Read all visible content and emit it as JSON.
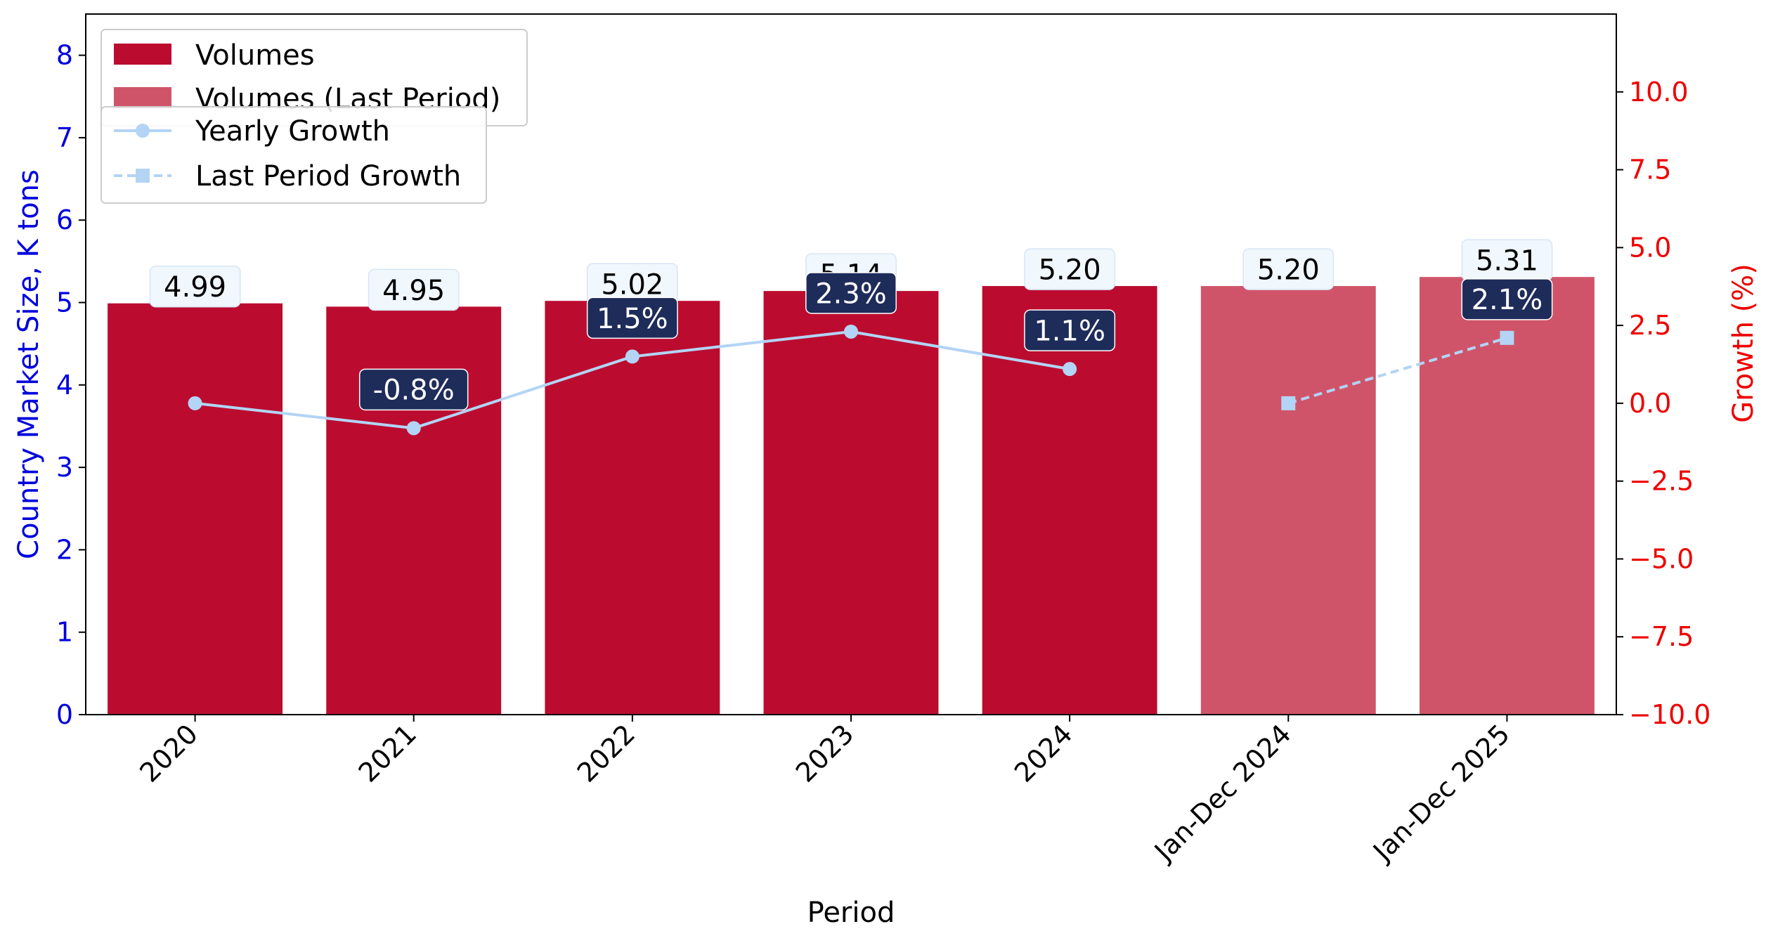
{
  "chart_data": {
    "type": "bar",
    "categories": [
      "2020",
      "2021",
      "2022",
      "2023",
      "2024",
      "Jan-Dec 2024",
      "Jan-Dec 2025"
    ],
    "xlabel": "Period",
    "ylabel": "Country Market Size, K tons",
    "ylabel_right": "Growth (%)",
    "ylim": [
      0,
      8.5
    ],
    "ylim_right": [
      -10,
      12.5
    ],
    "yticks": [
      "0",
      "1",
      "2",
      "3",
      "4",
      "5",
      "6",
      "7",
      "8"
    ],
    "yticks_right": [
      "−10.0",
      "−7.5",
      "−5.0",
      "−2.5",
      "0.0",
      "2.5",
      "5.0",
      "7.5",
      "10.0"
    ],
    "grid": false,
    "colors": {
      "volumes": "#bb0c30",
      "volumes_last": "#d05469",
      "growth_line": "#b3d4f5",
      "growth_label_bg": "#1e2c5a",
      "value_label_bg": "#f0f7fd",
      "left_axis": "#0000dd",
      "right_axis": "#ee0000"
    },
    "series": [
      {
        "name": "Volumes",
        "values": [
          4.99,
          4.95,
          5.02,
          5.14,
          5.2,
          null,
          null
        ],
        "labels": [
          "4.99",
          "4.95",
          "5.02",
          "5.14",
          "5.20",
          "",
          ""
        ]
      },
      {
        "name": "Volumes (Last Period)",
        "values": [
          null,
          null,
          null,
          null,
          null,
          5.2,
          5.31
        ],
        "labels": [
          "",
          "",
          "",
          "",
          "",
          "5.20",
          "5.31"
        ]
      },
      {
        "name": "Yearly Growth",
        "axis": "right",
        "values": [
          0.0,
          -0.8,
          1.5,
          2.3,
          1.1,
          null,
          null
        ],
        "labels": [
          "",
          "-0.8%",
          "1.5%",
          "2.3%",
          "1.1%",
          "",
          ""
        ]
      },
      {
        "name": "Last Period Growth",
        "axis": "right",
        "values": [
          null,
          null,
          null,
          null,
          null,
          0.0,
          2.1
        ],
        "labels": [
          "",
          "",
          "",
          "",
          "",
          "",
          "2.1%"
        ]
      }
    ],
    "legend": [
      {
        "label": "Volumes",
        "kind": "patch",
        "series": 0
      },
      {
        "label": "Volumes (Last Period)",
        "kind": "patch",
        "series": 1
      },
      {
        "label": "Yearly Growth",
        "kind": "line",
        "series": 2
      },
      {
        "label": "Last Period Growth",
        "kind": "dashed",
        "series": 3
      }
    ],
    "legend_position": "upper-left"
  }
}
